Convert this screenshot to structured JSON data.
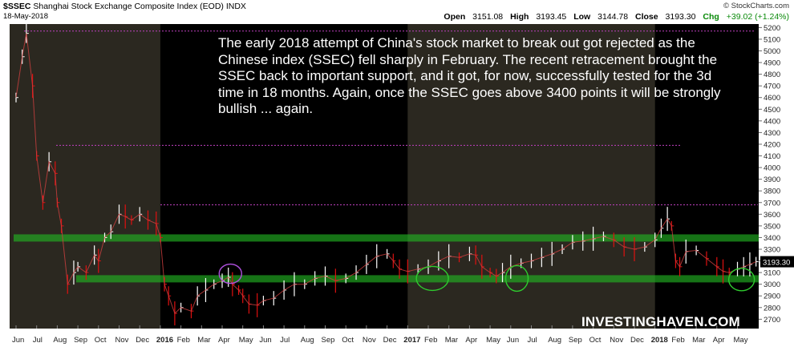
{
  "header": {
    "symbol": "$SSEC",
    "name": "Shanghai Stock Exchange Composite Index (EOD)",
    "exchange": "INDX",
    "date": "18-May-2018",
    "credit": "© StockCharts.com",
    "open_label": "Open",
    "open": "3151.08",
    "high_label": "High",
    "high": "3193.45",
    "low_label": "Low",
    "low": "3144.78",
    "close_label": "Close",
    "close": "3193.30",
    "chg_label": "Chg",
    "chg": "+39.02 (+1.24%)"
  },
  "annotation": "The early 2018 attempt of China's stock market to break out got rejected as the Chinese index (SSEC) fell sharply in February. The recent retracement brought the SSEC back to important support, and it got, for now, successfully tested for the 3d time in 18 months. Again, once the SSEC goes above 3400 points it will be strongly bullish ... again.",
  "brand": "INVESTINGHAVEN.COM",
  "colors": {
    "background": "#000000",
    "band": "#2b2820",
    "up": "#ffffff",
    "down": "#e01010",
    "support": "#22b022",
    "circle_green": "#2ecc2e",
    "circle_purple": "#b050e0",
    "dotted": "#c040c0"
  },
  "chart_data": {
    "type": "line",
    "title": "$SSEC Shanghai Stock Exchange Composite Index (EOD)",
    "y_ticks": [
      2700,
      2800,
      2900,
      3000,
      3100,
      3200,
      3300,
      3400,
      3500,
      3600,
      3700,
      3800,
      3900,
      4000,
      4100,
      4200,
      4300,
      4400,
      4500,
      4600,
      4700,
      4800,
      4900,
      5000,
      5100,
      5200
    ],
    "ylim": [
      2620,
      5230
    ],
    "last_value": "3193.30",
    "x_ticks": [
      {
        "label": "Jun",
        "idx": 0
      },
      {
        "label": "Jul",
        "idx": 1
      },
      {
        "label": "Aug",
        "idx": 2
      },
      {
        "label": "Sep",
        "idx": 3
      },
      {
        "label": "Oct",
        "idx": 4
      },
      {
        "label": "Nov",
        "idx": 5
      },
      {
        "label": "Dec",
        "idx": 6
      },
      {
        "label": "2016",
        "idx": 7,
        "bold": true
      },
      {
        "label": "Feb",
        "idx": 8
      },
      {
        "label": "Mar",
        "idx": 9
      },
      {
        "label": "Apr",
        "idx": 10
      },
      {
        "label": "May",
        "idx": 11
      },
      {
        "label": "Jun",
        "idx": 12
      },
      {
        "label": "Jul",
        "idx": 13
      },
      {
        "label": "Aug",
        "idx": 14
      },
      {
        "label": "Sep",
        "idx": 15
      },
      {
        "label": "Oct",
        "idx": 16
      },
      {
        "label": "Nov",
        "idx": 17
      },
      {
        "label": "Dec",
        "idx": 18
      },
      {
        "label": "2017",
        "idx": 19,
        "bold": true
      },
      {
        "label": "Feb",
        "idx": 20
      },
      {
        "label": "Mar",
        "idx": 21
      },
      {
        "label": "Apr",
        "idx": 22
      },
      {
        "label": "May",
        "idx": 23
      },
      {
        "label": "Jun",
        "idx": 24
      },
      {
        "label": "Jul",
        "idx": 25
      },
      {
        "label": "Aug",
        "idx": 26
      },
      {
        "label": "Sep",
        "idx": 27
      },
      {
        "label": "Oct",
        "idx": 28
      },
      {
        "label": "Nov",
        "idx": 29
      },
      {
        "label": "Dec",
        "idx": 30
      },
      {
        "label": "2018",
        "idx": 31,
        "bold": true
      },
      {
        "label": "Feb",
        "idx": 32
      },
      {
        "label": "Mar",
        "idx": 33
      },
      {
        "label": "Apr",
        "idx": 34
      },
      {
        "label": "May",
        "idx": 35
      }
    ],
    "series": [
      {
        "points": [
          [
            0,
            4600
          ],
          [
            0.3,
            4950
          ],
          [
            0.5,
            5150
          ],
          [
            0.8,
            4700
          ],
          [
            1,
            4100
          ],
          [
            1.3,
            3700
          ],
          [
            1.6,
            4050
          ],
          [
            1.9,
            3950
          ],
          [
            2,
            3700
          ],
          [
            2.2,
            3500
          ],
          [
            2.5,
            3000
          ],
          [
            2.8,
            3100
          ],
          [
            3,
            3150
          ],
          [
            3.4,
            3100
          ],
          [
            3.8,
            3250
          ],
          [
            4,
            3200
          ],
          [
            4.3,
            3400
          ],
          [
            4.6,
            3450
          ],
          [
            5,
            3600
          ],
          [
            5.3,
            3580
          ],
          [
            5.6,
            3550
          ],
          [
            6,
            3600
          ],
          [
            6.4,
            3550
          ],
          [
            6.8,
            3520
          ],
          [
            7,
            3400
          ],
          [
            7.2,
            3000
          ],
          [
            7.4,
            2900
          ],
          [
            7.7,
            2750
          ],
          [
            8,
            2800
          ],
          [
            8.5,
            2770
          ],
          [
            8.8,
            2900
          ],
          [
            9.2,
            2950
          ],
          [
            9.6,
            3000
          ],
          [
            10,
            3030
          ],
          [
            10.3,
            3060
          ],
          [
            10.5,
            3000
          ],
          [
            10.8,
            2950
          ],
          [
            11,
            2900
          ],
          [
            11.3,
            2830
          ],
          [
            11.7,
            2820
          ],
          [
            12,
            2860
          ],
          [
            12.5,
            2880
          ],
          [
            13,
            2950
          ],
          [
            13.5,
            3000
          ],
          [
            14,
            3000
          ],
          [
            14.5,
            3050
          ],
          [
            15,
            3070
          ],
          [
            15.5,
            3030
          ],
          [
            16,
            3050
          ],
          [
            16.5,
            3100
          ],
          [
            17,
            3170
          ],
          [
            17.5,
            3240
          ],
          [
            18,
            3260
          ],
          [
            18.3,
            3200
          ],
          [
            18.6,
            3130
          ],
          [
            19,
            3110
          ],
          [
            19.5,
            3130
          ],
          [
            20,
            3150
          ],
          [
            20.5,
            3200
          ],
          [
            21,
            3240
          ],
          [
            21.5,
            3230
          ],
          [
            22,
            3260
          ],
          [
            22.3,
            3250
          ],
          [
            22.6,
            3150
          ],
          [
            23,
            3100
          ],
          [
            23.3,
            3070
          ],
          [
            23.6,
            3100
          ],
          [
            24,
            3150
          ],
          [
            24.5,
            3180
          ],
          [
            25,
            3200
          ],
          [
            25.5,
            3230
          ],
          [
            26,
            3260
          ],
          [
            26.5,
            3300
          ],
          [
            27,
            3360
          ],
          [
            27.5,
            3370
          ],
          [
            28,
            3390
          ],
          [
            28.5,
            3410
          ],
          [
            29,
            3380
          ],
          [
            29.5,
            3320
          ],
          [
            30,
            3300
          ],
          [
            30.5,
            3320
          ],
          [
            31,
            3380
          ],
          [
            31.3,
            3480
          ],
          [
            31.6,
            3560
          ],
          [
            31.8,
            3500
          ],
          [
            32,
            3200
          ],
          [
            32.2,
            3150
          ],
          [
            32.5,
            3280
          ],
          [
            33,
            3290
          ],
          [
            33.5,
            3220
          ],
          [
            34,
            3150
          ],
          [
            34.3,
            3110
          ],
          [
            34.6,
            3100
          ],
          [
            35,
            3130
          ],
          [
            35.3,
            3150
          ],
          [
            35.6,
            3170
          ],
          [
            35.9,
            3193
          ]
        ]
      }
    ],
    "support_bands": [
      3400,
      3050
    ],
    "resistance_dotted": [
      5170,
      4190,
      3680
    ]
  }
}
